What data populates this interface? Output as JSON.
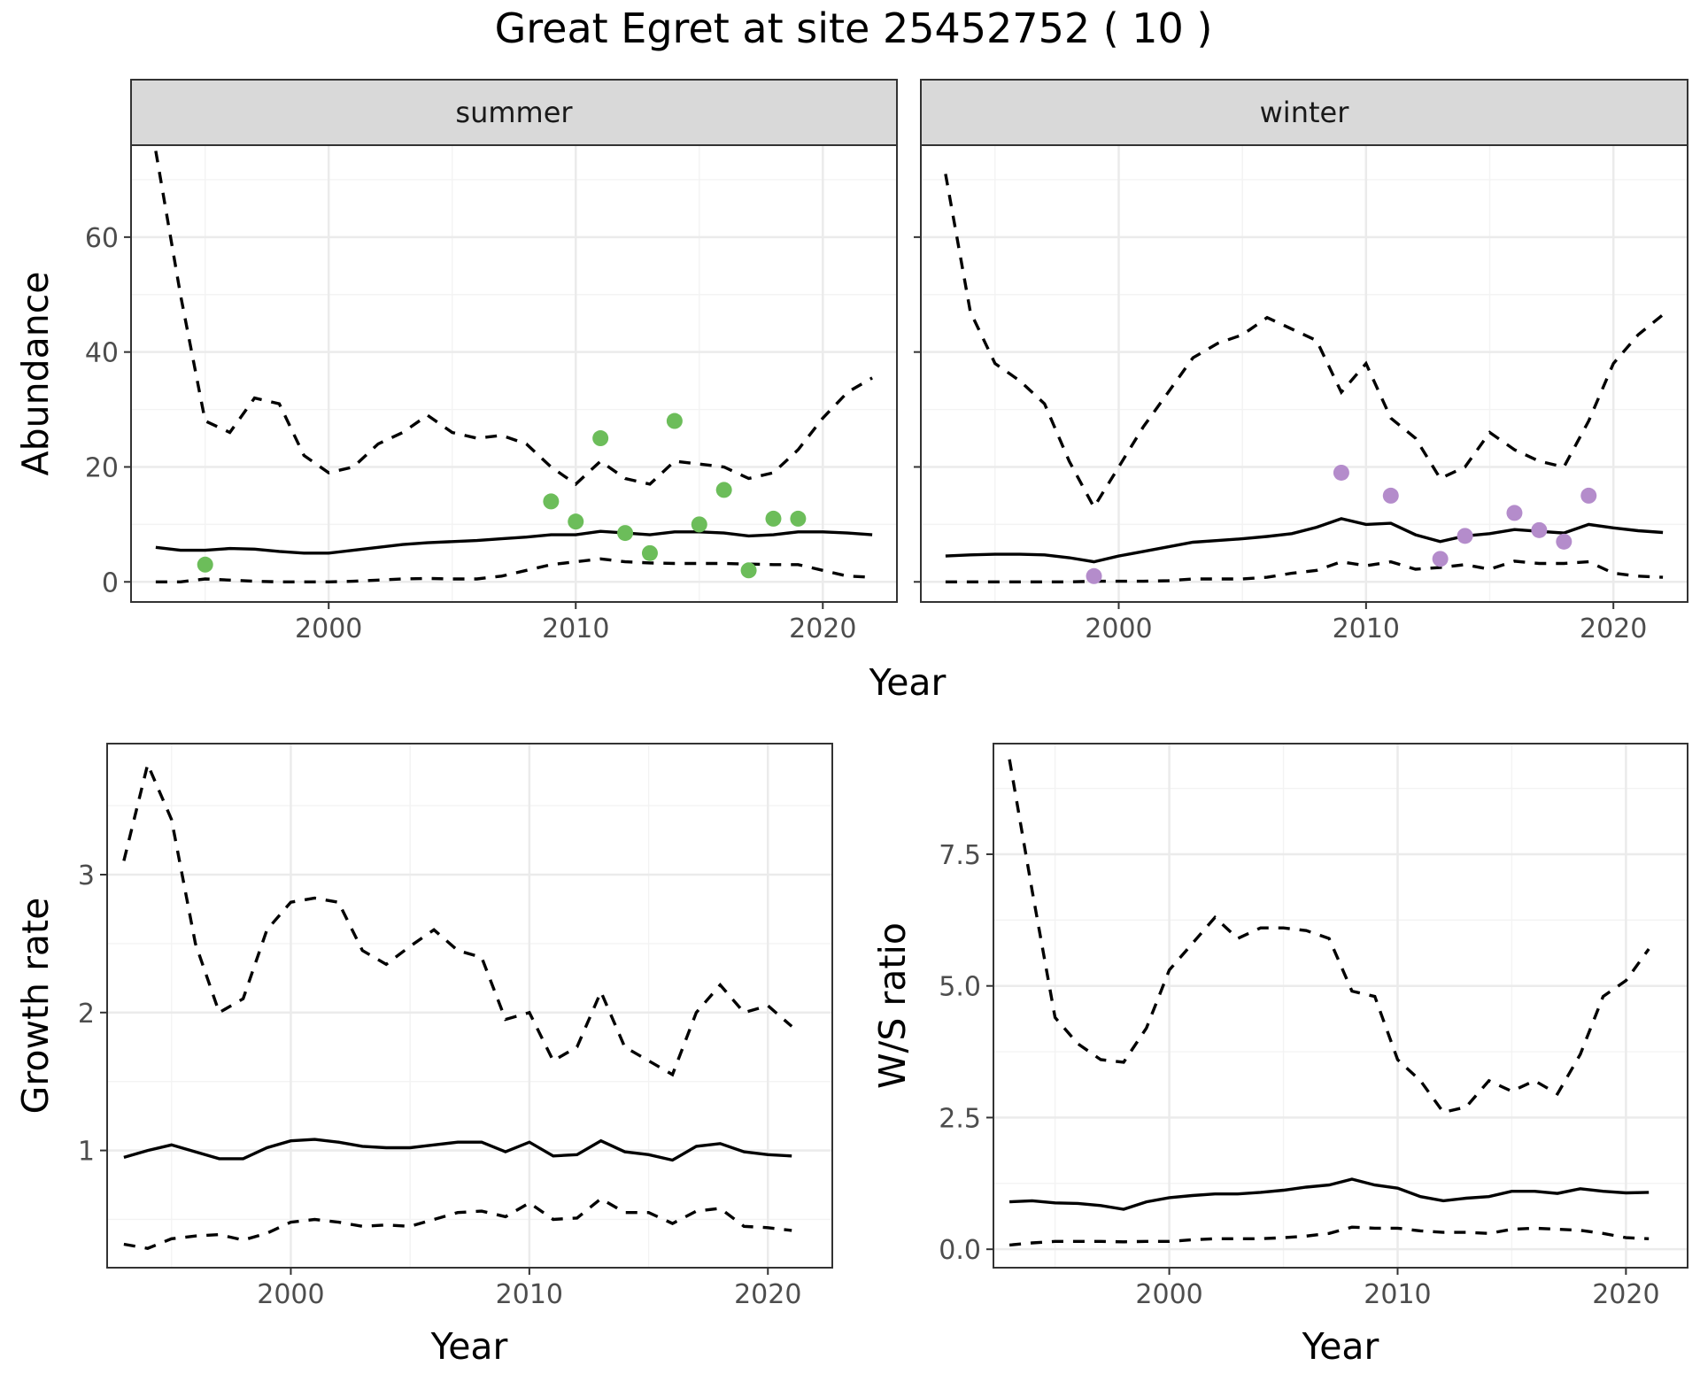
{
  "title": "Great Egret at site 25452752 ( 10 )",
  "colors": {
    "summer_points": "#6cbd5a",
    "winter_points": "#b48ccb",
    "lines": "#000000"
  },
  "chart_data": [
    {
      "type": "line",
      "panel": "summer",
      "strip_label": "summer",
      "xlabel": "Year",
      "ylabel": "Abundance",
      "xlim": [
        1992,
        2023
      ],
      "ylim": [
        -3.5,
        76
      ],
      "x_ticks": [
        2000,
        2010,
        2020
      ],
      "x_tick_labels": [
        "2000",
        "2010",
        "2020"
      ],
      "y_ticks": [
        0,
        20,
        40,
        60
      ],
      "y_tick_labels": [
        "0",
        "20",
        "40",
        "60"
      ],
      "x": [
        1993,
        1994,
        1995,
        1996,
        1997,
        1998,
        1999,
        2000,
        2001,
        2002,
        2003,
        2004,
        2005,
        2006,
        2007,
        2008,
        2009,
        2010,
        2011,
        2012,
        2013,
        2014,
        2015,
        2016,
        2017,
        2018,
        2019,
        2020,
        2021,
        2022
      ],
      "series": [
        {
          "role": "upper",
          "style": "dashed",
          "values": [
            75,
            50,
            28,
            26,
            32,
            31,
            22,
            19,
            20,
            24,
            26,
            29,
            26,
            25,
            25.5,
            24,
            20,
            17,
            21,
            18,
            17,
            21,
            20.5,
            20,
            18,
            19,
            23,
            28.5,
            33,
            35.5
          ]
        },
        {
          "role": "mean",
          "style": "solid",
          "values": [
            6,
            5.5,
            5.5,
            5.8,
            5.7,
            5.3,
            5,
            5,
            5.5,
            6,
            6.5,
            6.8,
            7,
            7.2,
            7.5,
            7.8,
            8.2,
            8.2,
            8.8,
            8.5,
            8.2,
            8.7,
            8.7,
            8.5,
            8,
            8.2,
            8.7,
            8.7,
            8.5,
            8.2
          ]
        },
        {
          "role": "lower",
          "style": "dashed",
          "values": [
            0,
            0,
            0.5,
            0.3,
            0.1,
            0,
            0,
            0,
            0.1,
            0.3,
            0.5,
            0.6,
            0.5,
            0.5,
            1,
            2,
            3,
            3.5,
            4,
            3.5,
            3.3,
            3.2,
            3.2,
            3.2,
            3.1,
            3,
            3,
            2,
            1,
            0.8
          ]
        }
      ],
      "points": {
        "x": [
          1995,
          2009,
          2010,
          2011,
          2012,
          2013,
          2014,
          2015,
          2016,
          2017,
          2018,
          2019
        ],
        "y": [
          3,
          14,
          10.5,
          25,
          8.5,
          5,
          28,
          10,
          16,
          2,
          11,
          11
        ]
      }
    },
    {
      "type": "line",
      "panel": "winter",
      "strip_label": "winter",
      "xlabel": "Year",
      "ylabel": "Abundance",
      "xlim": [
        1992,
        2023
      ],
      "ylim": [
        -3.5,
        76
      ],
      "x_ticks": [
        2000,
        2010,
        2020
      ],
      "x_tick_labels": [
        "2000",
        "2010",
        "2020"
      ],
      "y_ticks": [
        0,
        20,
        40,
        60
      ],
      "x": [
        1993,
        1994,
        1995,
        1996,
        1997,
        1998,
        1999,
        2000,
        2001,
        2002,
        2003,
        2004,
        2005,
        2006,
        2007,
        2008,
        2009,
        2010,
        2011,
        2012,
        2013,
        2014,
        2015,
        2016,
        2017,
        2018,
        2019,
        2020,
        2021,
        2022
      ],
      "series": [
        {
          "role": "upper",
          "style": "dashed",
          "values": [
            71,
            47,
            38,
            35,
            31,
            21,
            13,
            20,
            27,
            33,
            39,
            41.5,
            43,
            46,
            44,
            42,
            33,
            38,
            28.5,
            25,
            18,
            20,
            26,
            23,
            21,
            20,
            28,
            38,
            43,
            46.5
          ]
        },
        {
          "role": "mean",
          "style": "solid",
          "values": [
            4.5,
            4.7,
            4.8,
            4.8,
            4.7,
            4.2,
            3.5,
            4.5,
            5.3,
            6.1,
            6.9,
            7.2,
            7.5,
            7.9,
            8.4,
            9.5,
            11,
            10,
            10.2,
            8.2,
            7,
            8,
            8.4,
            9.1,
            8.8,
            8.5,
            10,
            9.4,
            8.9,
            8.6
          ]
        },
        {
          "role": "lower",
          "style": "dashed",
          "values": [
            0,
            0,
            0,
            0,
            0,
            0,
            0.1,
            0.1,
            0.1,
            0.2,
            0.5,
            0.5,
            0.5,
            0.8,
            1.5,
            2,
            3.5,
            2.8,
            3.5,
            2.2,
            2.5,
            3,
            2.2,
            3.6,
            3.2,
            3.2,
            3.5,
            1.5,
            1,
            0.8
          ]
        }
      ],
      "points": {
        "x": [
          1999,
          2009,
          2011,
          2013,
          2014,
          2016,
          2017,
          2018,
          2019
        ],
        "y": [
          1,
          19,
          15,
          4,
          8,
          12,
          9,
          7,
          15
        ]
      }
    },
    {
      "type": "line",
      "panel": "growth",
      "xlabel": "Year",
      "ylabel": "Growth rate",
      "xlim": [
        1992.3,
        2022.7
      ],
      "ylim": [
        0.15,
        3.95
      ],
      "x_ticks": [
        2000,
        2010,
        2020
      ],
      "x_tick_labels": [
        "2000",
        "2010",
        "2020"
      ],
      "y_ticks": [
        1,
        2,
        3
      ],
      "y_tick_labels": [
        "1",
        "2",
        "3"
      ],
      "x": [
        1993,
        1994,
        1995,
        1996,
        1997,
        1998,
        1999,
        2000,
        2001,
        2002,
        2003,
        2004,
        2005,
        2006,
        2007,
        2008,
        2009,
        2010,
        2011,
        2012,
        2013,
        2014,
        2015,
        2016,
        2017,
        2018,
        2019,
        2020,
        2021
      ],
      "series": [
        {
          "role": "upper",
          "style": "dashed",
          "values": [
            3.1,
            3.8,
            3.4,
            2.5,
            2.0,
            2.1,
            2.6,
            2.8,
            2.83,
            2.8,
            2.45,
            2.35,
            2.48,
            2.6,
            2.45,
            2.4,
            1.95,
            2.0,
            1.65,
            1.75,
            2.15,
            1.75,
            1.65,
            1.55,
            2.0,
            2.2,
            2.0,
            2.05,
            1.9
          ]
        },
        {
          "role": "mean",
          "style": "solid",
          "values": [
            0.95,
            1.0,
            1.04,
            0.99,
            0.94,
            0.94,
            1.02,
            1.07,
            1.08,
            1.06,
            1.03,
            1.02,
            1.02,
            1.04,
            1.06,
            1.06,
            0.99,
            1.06,
            0.96,
            0.97,
            1.07,
            0.99,
            0.97,
            0.93,
            1.03,
            1.05,
            0.99,
            0.97,
            0.96
          ]
        },
        {
          "role": "lower",
          "style": "dashed",
          "values": [
            0.32,
            0.29,
            0.36,
            0.38,
            0.39,
            0.35,
            0.4,
            0.48,
            0.5,
            0.48,
            0.45,
            0.46,
            0.45,
            0.5,
            0.55,
            0.56,
            0.52,
            0.62,
            0.5,
            0.51,
            0.65,
            0.55,
            0.55,
            0.47,
            0.56,
            0.58,
            0.45,
            0.44,
            0.42
          ]
        }
      ]
    },
    {
      "type": "line",
      "panel": "ratio",
      "xlabel": "Year",
      "ylabel": "W/S ratio",
      "xlim": [
        1992.3,
        2022.7
      ],
      "ylim": [
        -0.35,
        9.6
      ],
      "x_ticks": [
        2000,
        2010,
        2020
      ],
      "x_tick_labels": [
        "2000",
        "2010",
        "2020"
      ],
      "y_ticks": [
        0,
        2.5,
        5,
        7.5
      ],
      "y_tick_labels": [
        "0.0",
        "2.5",
        "5.0",
        "7.5"
      ],
      "x": [
        1993,
        1994,
        1995,
        1996,
        1997,
        1998,
        1999,
        2000,
        2001,
        2002,
        2003,
        2004,
        2005,
        2006,
        2007,
        2008,
        2009,
        2010,
        2011,
        2012,
        2013,
        2014,
        2015,
        2016,
        2017,
        2018,
        2019,
        2020,
        2021
      ],
      "series": [
        {
          "role": "upper",
          "style": "dashed",
          "values": [
            9.3,
            6.8,
            4.4,
            3.9,
            3.6,
            3.55,
            4.2,
            5.3,
            5.8,
            6.3,
            5.9,
            6.1,
            6.1,
            6.05,
            5.9,
            4.9,
            4.8,
            3.6,
            3.2,
            2.6,
            2.7,
            3.2,
            3.0,
            3.2,
            2.95,
            3.7,
            4.8,
            5.1,
            5.7
          ]
        },
        {
          "role": "mean",
          "style": "solid",
          "values": [
            0.9,
            0.92,
            0.88,
            0.87,
            0.83,
            0.76,
            0.9,
            0.98,
            1.02,
            1.05,
            1.05,
            1.08,
            1.12,
            1.18,
            1.22,
            1.33,
            1.22,
            1.16,
            1.0,
            0.92,
            0.97,
            1.0,
            1.1,
            1.1,
            1.06,
            1.15,
            1.1,
            1.07,
            1.08
          ]
        },
        {
          "role": "lower",
          "style": "dashed",
          "values": [
            0.08,
            0.12,
            0.15,
            0.15,
            0.15,
            0.14,
            0.15,
            0.15,
            0.18,
            0.2,
            0.2,
            0.2,
            0.22,
            0.25,
            0.3,
            0.42,
            0.4,
            0.4,
            0.35,
            0.32,
            0.32,
            0.3,
            0.38,
            0.4,
            0.38,
            0.36,
            0.3,
            0.22,
            0.2
          ]
        }
      ]
    }
  ]
}
